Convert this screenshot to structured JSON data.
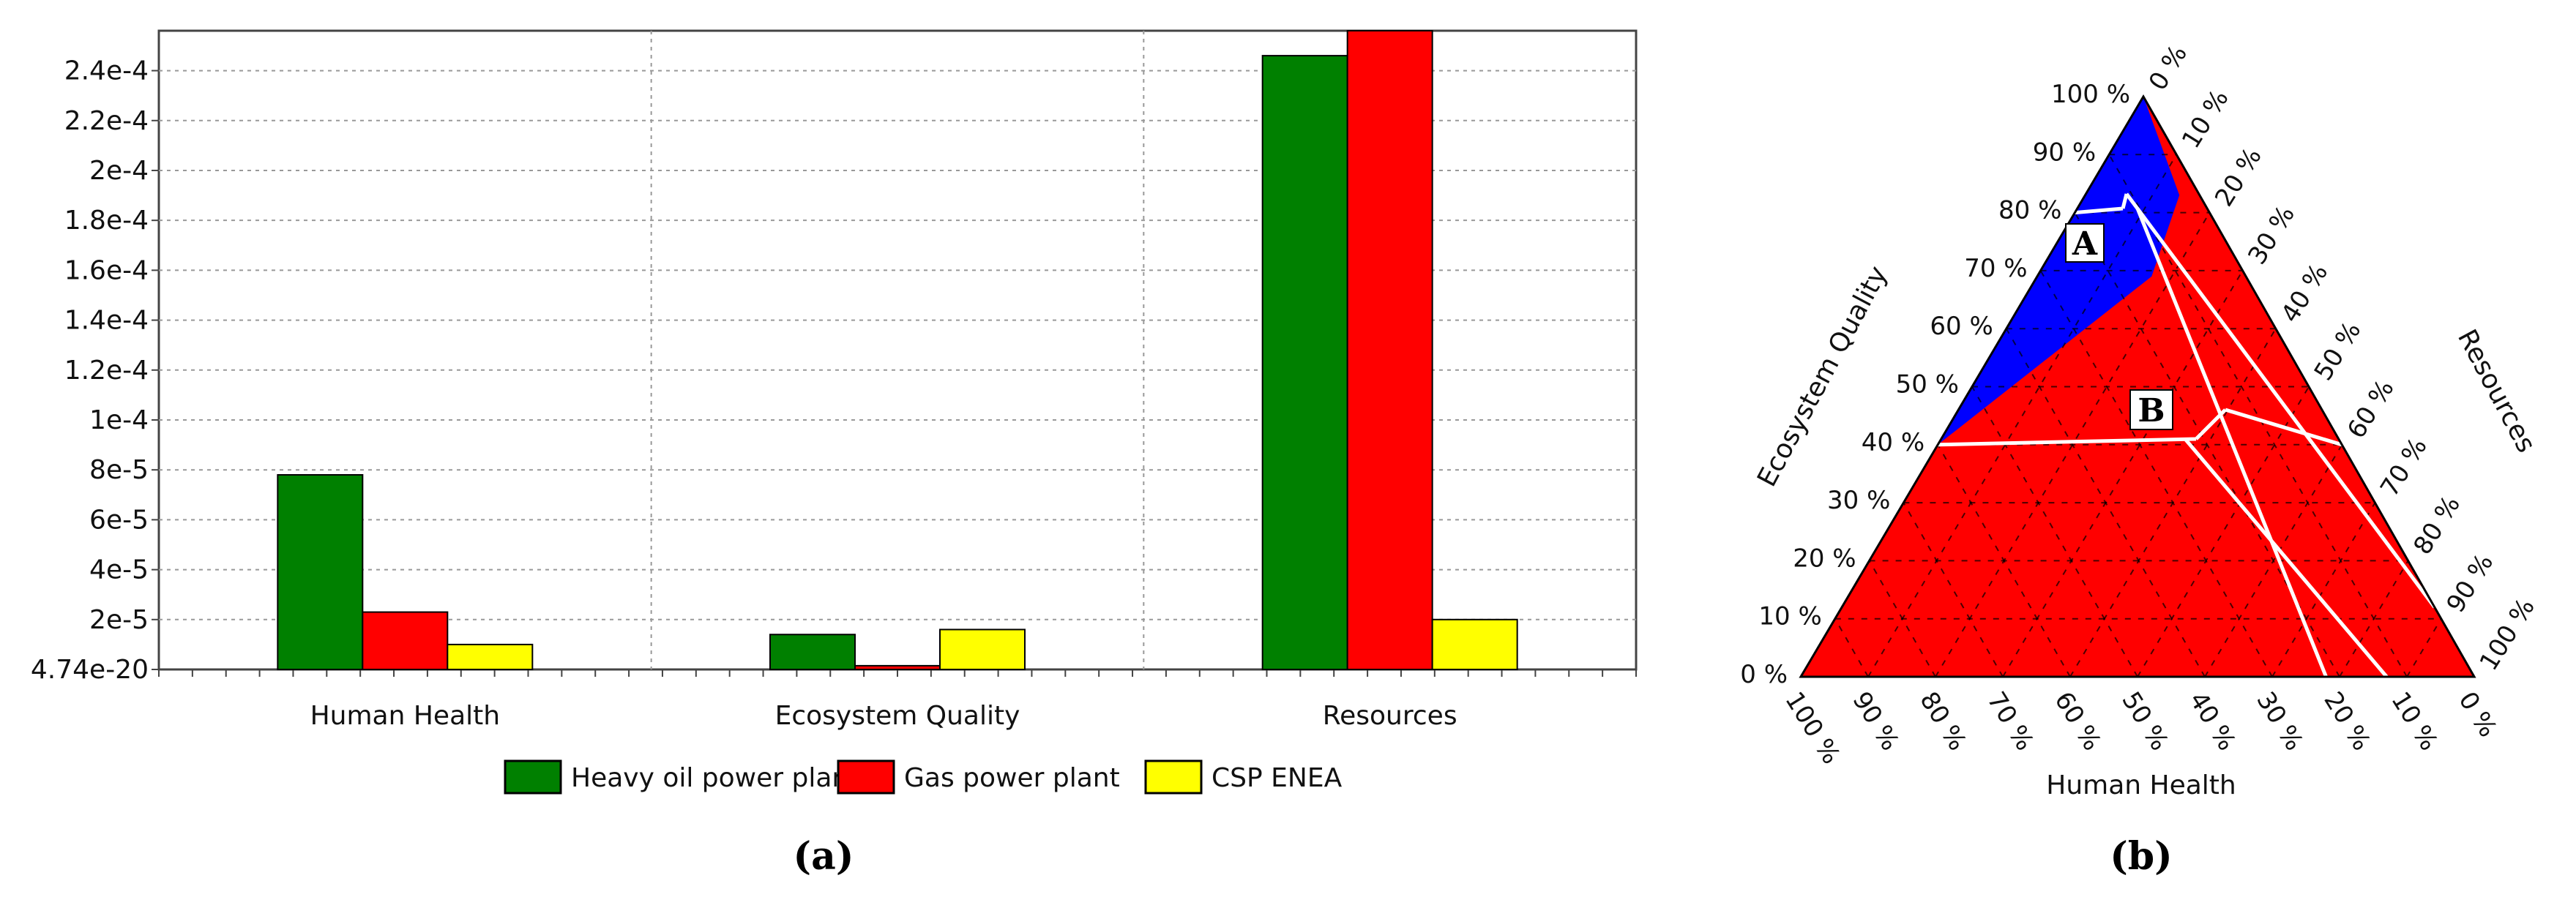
{
  "chart_data": [
    {
      "type": "bar",
      "panel_label": "(a)",
      "categories": [
        "Human Health",
        "Ecosystem Quality",
        "Resources"
      ],
      "series": [
        {
          "name": "Heavy oil power plant",
          "color": "#008000",
          "values": [
            7.8e-05,
            1.4e-05,
            0.000246
          ]
        },
        {
          "name": "Gas power plant",
          "color": "#ff0000",
          "values": [
            2.3e-05,
            1.5e-06,
            0.000256
          ]
        },
        {
          "name": "CSP ENEA",
          "color": "#ffff00",
          "values": [
            1e-05,
            1.6e-05,
            2e-05
          ]
        }
      ],
      "y_ticks": [
        {
          "value": 4.74e-20,
          "label": "4.74e-20"
        },
        {
          "value": 2e-05,
          "label": "2e-5"
        },
        {
          "value": 4e-05,
          "label": "4e-5"
        },
        {
          "value": 6e-05,
          "label": "6e-5"
        },
        {
          "value": 8e-05,
          "label": "8e-5"
        },
        {
          "value": 0.0001,
          "label": "1e-4"
        },
        {
          "value": 0.00012,
          "label": "1.2e-4"
        },
        {
          "value": 0.00014,
          "label": "1.4e-4"
        },
        {
          "value": 0.00016,
          "label": "1.6e-4"
        },
        {
          "value": 0.00018,
          "label": "1.8e-4"
        },
        {
          "value": 0.0002,
          "label": "2e-4"
        },
        {
          "value": 0.00022,
          "label": "2.2e-4"
        },
        {
          "value": 0.00024,
          "label": "2.4e-4"
        }
      ],
      "ylim": [
        0,
        0.000256
      ],
      "grid": true,
      "legend": "bottom"
    },
    {
      "type": "ternary",
      "panel_label": "(b)",
      "axes": {
        "left": "Ecosystem Quality",
        "right": "Resources",
        "bottom": "Human Health"
      },
      "tick_labels": [
        "0 %",
        "10 %",
        "20 %",
        "30 %",
        "40 %",
        "50 %",
        "60 %",
        "70 %",
        "80 %",
        "90 %",
        "100 %"
      ],
      "regions": [
        {
          "label": "A",
          "color": "#0000ff"
        },
        {
          "label": "B",
          "color": "#ff0000"
        }
      ]
    }
  ]
}
